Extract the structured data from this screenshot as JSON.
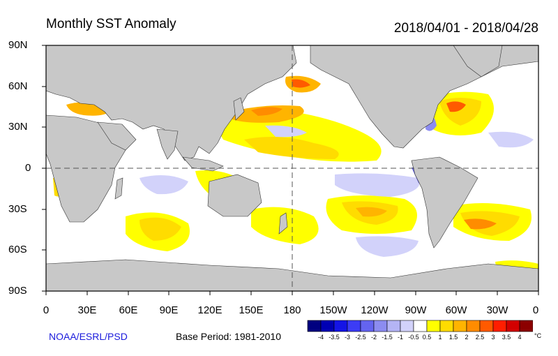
{
  "title": "Monthly SST Anomaly",
  "period": "2018/04/01 - 2018/04/28",
  "y_axis_labels": [
    "90N",
    "60N",
    "30N",
    "0",
    "30S",
    "60S",
    "90S"
  ],
  "x_axis_labels": [
    "0",
    "30E",
    "60E",
    "90E",
    "120E",
    "150E",
    "180",
    "150W",
    "120W",
    "90W",
    "60W",
    "30W",
    "0"
  ],
  "credit": "NOAA/ESRL/PSD",
  "base_period": "Base Period: 1981-2010",
  "colorbar": {
    "unit": "°C",
    "labels": [
      "-4",
      "-3.5",
      "-3",
      "-2.5",
      "-2",
      "-1.5",
      "-1",
      "-0.5",
      "0.5",
      "1",
      "1.5",
      "2",
      "2.5",
      "3",
      "3.5",
      "4"
    ],
    "colors": [
      "#000080",
      "#0000b4",
      "#1414e6",
      "#3c3cf5",
      "#6464f0",
      "#8c8cf0",
      "#b4b4f5",
      "#d2d2fa",
      "#ffffff",
      "#ffff00",
      "#ffdc00",
      "#ffb400",
      "#ff8c00",
      "#ff5a00",
      "#ff1e00",
      "#d20000",
      "#8c0000"
    ]
  },
  "colors": {
    "land": "#c8c8c8",
    "ocean": "#ffffff",
    "reference_lines": "#555555"
  }
}
